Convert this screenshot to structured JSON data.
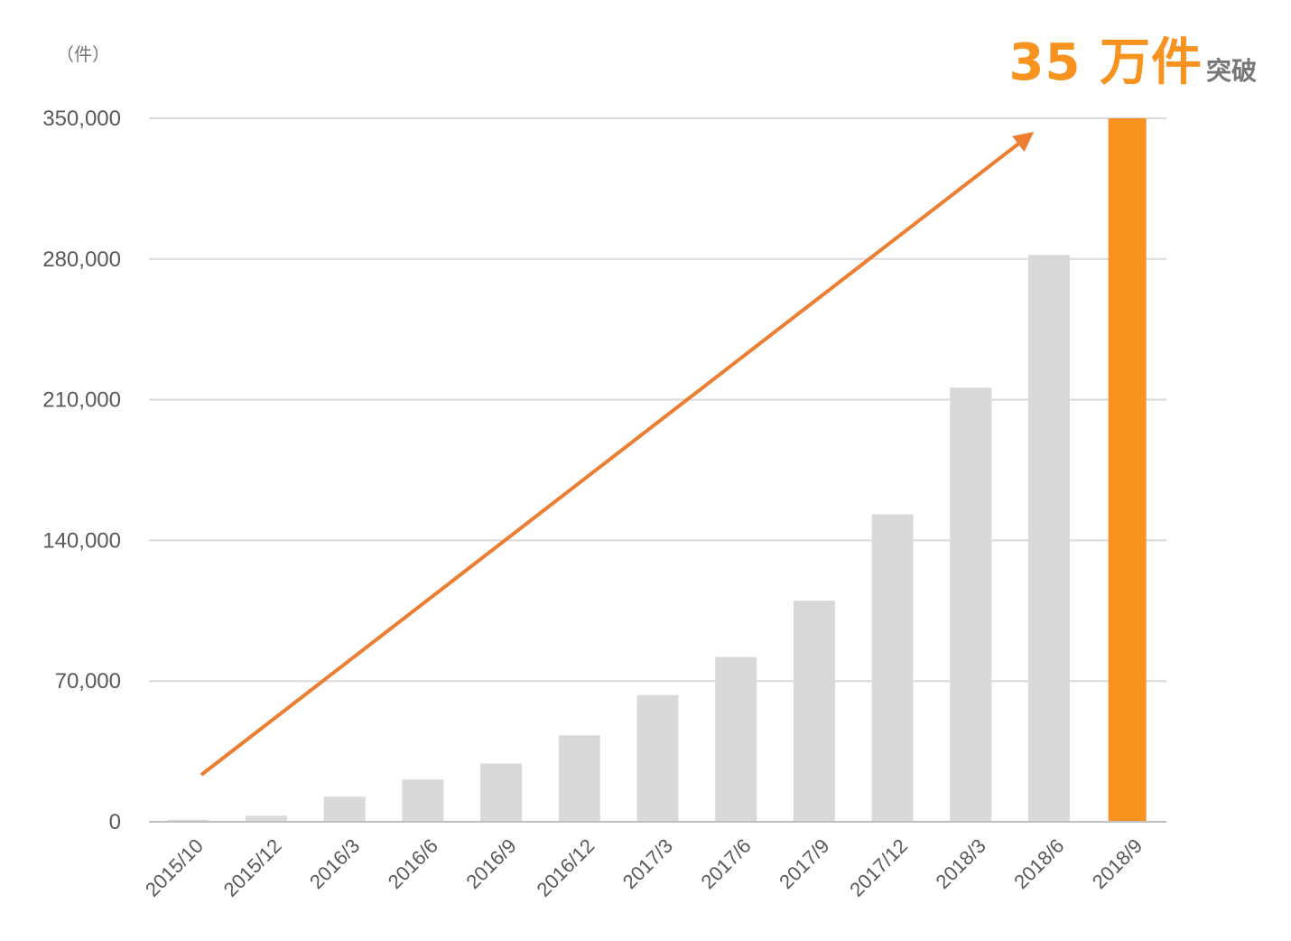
{
  "chart_data": {
    "type": "bar",
    "unit_label": "（件）",
    "headline": {
      "big": "35 万件",
      "small": "突破"
    },
    "categories": [
      "2015/10",
      "2015/12",
      "2016/3",
      "2016/6",
      "2016/9",
      "2016/12",
      "2017/3",
      "2017/6",
      "2017/9",
      "2017/12",
      "2018/3",
      "2018/6",
      "2018/9"
    ],
    "values": [
      1000,
      3000,
      12500,
      21000,
      29000,
      43000,
      63000,
      82000,
      110000,
      153000,
      216000,
      282000,
      350000
    ],
    "yticks": [
      "0",
      "70,000",
      "140,000",
      "210,000",
      "280,000",
      "350,000"
    ],
    "ytick_values": [
      0,
      70000,
      140000,
      210000,
      280000,
      350000
    ],
    "ylim": [
      0,
      350000
    ],
    "grid": true,
    "highlight_index": 12,
    "colors": {
      "bar": "#d9d9d9",
      "highlight": "#f7931e",
      "arrow": "#ed7d31",
      "grid": "#d9d9d9",
      "text": "#595959"
    }
  }
}
